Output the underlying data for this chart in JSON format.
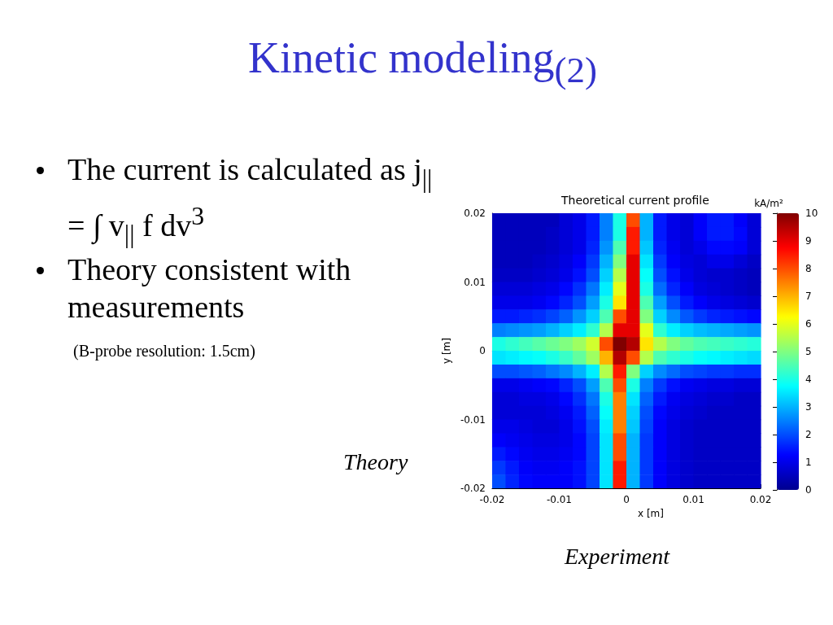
{
  "chart_data": {
    "type": "heatmap",
    "title": "Theoretical current profile",
    "xlabel": "x [m]",
    "ylabel": "y [m]",
    "clabel": "kA/m²",
    "annotations": [
      "Kinetic modeling$_{(2)}$",
      "The current is calculated as j$_{||}$ = ∫ v$_{||}$ f dv$^{3}$",
      "Theory consistent with measurements",
      "(B-probe resolution: 1.5cm)",
      "Theory",
      "Experiment"
    ],
    "xlim": [
      -0.02,
      0.02
    ],
    "xticks": [
      -0.02,
      -0.01,
      0,
      0.01,
      0.02
    ],
    "ylim": [
      -0.02,
      0.02
    ],
    "yticks": [
      -0.02,
      -0.01,
      0,
      0.01,
      0.02
    ],
    "clim": [
      0,
      10
    ],
    "cticks": [
      0,
      1,
      2,
      3,
      4,
      5,
      6,
      7,
      8,
      9,
      10
    ],
    "cells": [
      [
        0.5,
        0.5,
        0.5,
        0.5,
        0.5,
        0.8,
        1,
        1.5,
        2.5,
        4,
        8,
        3,
        1.5,
        1,
        0.8,
        1.2,
        1.5,
        1.5,
        1.2,
        0.8
      ],
      [
        0.5,
        0.5,
        0.5,
        0.5,
        0.6,
        0.8,
        1,
        1.5,
        2.5,
        4,
        8.5,
        3,
        1.5,
        1,
        0.8,
        1.2,
        1.5,
        1.5,
        1.3,
        0.8
      ],
      [
        0.5,
        0.5,
        0.5,
        0.5,
        0.6,
        0.8,
        1,
        1.6,
        2.7,
        4.5,
        8.5,
        3.2,
        1.6,
        1.1,
        0.8,
        1,
        1.3,
        1.3,
        1.2,
        0.8
      ],
      [
        0.5,
        0.5,
        0.5,
        0.6,
        0.7,
        0.9,
        1.2,
        1.8,
        3,
        5,
        9,
        3.5,
        1.8,
        1.2,
        0.9,
        0.8,
        1,
        1,
        0.8,
        0.6
      ],
      [
        0.6,
        0.6,
        0.6,
        0.7,
        0.8,
        1,
        1.4,
        2,
        3.3,
        5.5,
        9,
        3.8,
        2,
        1.4,
        1,
        0.8,
        0.7,
        0.7,
        0.6,
        0.5
      ],
      [
        0.8,
        0.8,
        0.8,
        0.9,
        1,
        1.3,
        1.7,
        2.4,
        3.6,
        6,
        9,
        4,
        2.3,
        1.6,
        1.2,
        0.9,
        0.8,
        0.7,
        0.6,
        0.5
      ],
      [
        1,
        1,
        1,
        1.1,
        1.3,
        1.6,
        2,
        2.8,
        4,
        6.5,
        9,
        4.5,
        2.8,
        2,
        1.5,
        1.2,
        1,
        0.9,
        0.8,
        0.7
      ],
      [
        1.5,
        1.5,
        1.6,
        1.7,
        1.9,
        2.2,
        2.7,
        3.3,
        4.5,
        8,
        9,
        5,
        3.3,
        2.6,
        2.1,
        1.8,
        1.6,
        1.5,
        1.4,
        1.3
      ],
      [
        2.5,
        2.6,
        2.7,
        2.8,
        3,
        3.3,
        3.6,
        4.2,
        5.5,
        9,
        9,
        6,
        4.2,
        3.6,
        3.3,
        3.1,
        3,
        2.9,
        2.8,
        2.7
      ],
      [
        4,
        4.2,
        4.4,
        4.6,
        4.8,
        5,
        5.3,
        5.8,
        8,
        10,
        9.5,
        6.5,
        5.5,
        5,
        4.7,
        4.5,
        4.4,
        4.3,
        4.2,
        4.1
      ],
      [
        3.5,
        3.6,
        3.7,
        3.8,
        4,
        4.3,
        4.7,
        5.3,
        7,
        9.5,
        8,
        5.5,
        4.5,
        4.2,
        4,
        3.8,
        3.7,
        3.6,
        3.5,
        3.4
      ],
      [
        2,
        2,
        2.1,
        2.2,
        2.4,
        2.6,
        3,
        3.6,
        5.5,
        8.5,
        5,
        3.3,
        2.6,
        2.3,
        2,
        1.9,
        1.8,
        1.8,
        1.7,
        1.7
      ],
      [
        1,
        1,
        1.1,
        1.2,
        1.3,
        1.6,
        2,
        2.8,
        4.5,
        8,
        4,
        2.5,
        1.8,
        1.4,
        1.1,
        1,
        0.9,
        0.9,
        0.8,
        0.8
      ],
      [
        0.8,
        0.8,
        0.9,
        0.9,
        1,
        1.3,
        1.7,
        2.4,
        4,
        7.5,
        3.5,
        2.2,
        1.5,
        1.1,
        0.9,
        0.8,
        0.7,
        0.7,
        0.6,
        0.6
      ],
      [
        0.8,
        0.8,
        0.8,
        0.8,
        0.9,
        1.1,
        1.5,
        2.2,
        3.8,
        7.5,
        3.3,
        2,
        1.3,
        1,
        0.8,
        0.7,
        0.6,
        0.6,
        0.6,
        0.6
      ],
      [
        1,
        1,
        0.9,
        0.8,
        0.8,
        1,
        1.4,
        2,
        3.6,
        7.5,
        3.2,
        1.9,
        1.2,
        0.9,
        0.7,
        0.6,
        0.6,
        0.6,
        0.6,
        0.6
      ],
      [
        1.2,
        1.1,
        1,
        0.9,
        0.9,
        1,
        1.3,
        1.9,
        3.5,
        8,
        3,
        1.8,
        1.2,
        0.9,
        0.7,
        0.6,
        0.6,
        0.6,
        0.6,
        0.6
      ],
      [
        1.5,
        1.3,
        1.1,
        1,
        1,
        1.1,
        1.3,
        1.9,
        3.5,
        8,
        3,
        1.8,
        1.2,
        0.9,
        0.7,
        0.6,
        0.6,
        0.6,
        0.6,
        0.6
      ],
      [
        1.8,
        1.5,
        1.2,
        1.1,
        1.1,
        1.2,
        1.4,
        1.9,
        3.5,
        8.5,
        3,
        1.8,
        1.2,
        0.9,
        0.7,
        0.6,
        0.6,
        0.6,
        0.6,
        0.6
      ],
      [
        2,
        1.6,
        1.3,
        1.2,
        1.2,
        1.2,
        1.4,
        1.9,
        3.5,
        8.5,
        3,
        1.8,
        1.2,
        0.9,
        0.7,
        0.6,
        0.6,
        0.6,
        0.6,
        0.6
      ]
    ]
  }
}
